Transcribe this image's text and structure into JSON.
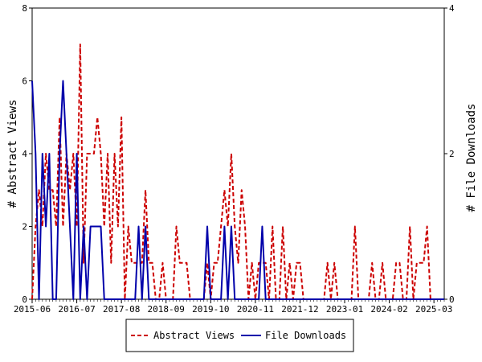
{
  "chart_data": {
    "type": "line",
    "title": "",
    "xlabel": "",
    "ylabel_left": "# Abstract Views",
    "ylabel_right": "# File Downloads",
    "ylim_left": [
      0,
      8
    ],
    "ylim_right": [
      0,
      4
    ],
    "yticks_left": [
      "0",
      "2",
      "4",
      "6",
      "8"
    ],
    "yticks_right": [
      "0",
      "2",
      "4"
    ],
    "x_tick_labels": [
      "2015-06",
      "2016-07",
      "2017-08",
      "2018-09",
      "2019-10",
      "2020-11",
      "2021-12",
      "2023-01",
      "2024-02",
      "2025-03"
    ],
    "x_start": "2015-06",
    "x_end": "2025-06",
    "legend_position": "bottom",
    "grid": false,
    "series": [
      {
        "name": "Abstract Views",
        "axis": "left",
        "color": "#cc0000",
        "style": "dashed",
        "points": [
          [
            "2015-06",
            0
          ],
          [
            "2015-07",
            2
          ],
          [
            "2015-08",
            3
          ],
          [
            "2015-09",
            2
          ],
          [
            "2015-10",
            4
          ],
          [
            "2015-11",
            3
          ],
          [
            "2015-12",
            3
          ],
          [
            "2016-01",
            2
          ],
          [
            "2016-02",
            5
          ],
          [
            "2016-03",
            2
          ],
          [
            "2016-04",
            4
          ],
          [
            "2016-05",
            3
          ],
          [
            "2016-06",
            4
          ],
          [
            "2016-07",
            2
          ],
          [
            "2016-08",
            7
          ],
          [
            "2016-09",
            1
          ],
          [
            "2016-10",
            4
          ],
          [
            "2016-11",
            4
          ],
          [
            "2016-12",
            4
          ],
          [
            "2017-01",
            5
          ],
          [
            "2017-02",
            4
          ],
          [
            "2017-03",
            2
          ],
          [
            "2017-04",
            4
          ],
          [
            "2017-05",
            1
          ],
          [
            "2017-06",
            4
          ],
          [
            "2017-07",
            2
          ],
          [
            "2017-08",
            5
          ],
          [
            "2017-09",
            0
          ],
          [
            "2017-10",
            2
          ],
          [
            "2017-11",
            1
          ],
          [
            "2017-12",
            1
          ],
          [
            "2018-01",
            1
          ],
          [
            "2018-02",
            1
          ],
          [
            "2018-03",
            3
          ],
          [
            "2018-04",
            1
          ],
          [
            "2018-05",
            1
          ],
          [
            "2018-06",
            0
          ],
          [
            "2018-07",
            0
          ],
          [
            "2018-08",
            1
          ],
          [
            "2018-09",
            0
          ],
          [
            "2018-10",
            0
          ],
          [
            "2018-11",
            0
          ],
          [
            "2018-12",
            2
          ],
          [
            "2019-01",
            1
          ],
          [
            "2019-02",
            1
          ],
          [
            "2019-03",
            1
          ],
          [
            "2019-04",
            0
          ],
          [
            "2019-05",
            0
          ],
          [
            "2019-06",
            0
          ],
          [
            "2019-07",
            0
          ],
          [
            "2019-08",
            0
          ],
          [
            "2019-09",
            1
          ],
          [
            "2019-10",
            0
          ],
          [
            "2019-11",
            1
          ],
          [
            "2019-12",
            1
          ],
          [
            "2020-01",
            2
          ],
          [
            "2020-02",
            3
          ],
          [
            "2020-03",
            2
          ],
          [
            "2020-04",
            4
          ],
          [
            "2020-05",
            2
          ],
          [
            "2020-06",
            1
          ],
          [
            "2020-07",
            3
          ],
          [
            "2020-08",
            2
          ],
          [
            "2020-09",
            0
          ],
          [
            "2020-10",
            1
          ],
          [
            "2020-11",
            0
          ],
          [
            "2020-12",
            1
          ],
          [
            "2021-01",
            1
          ],
          [
            "2021-02",
            1
          ],
          [
            "2021-03",
            0
          ],
          [
            "2021-04",
            2
          ],
          [
            "2021-05",
            0
          ],
          [
            "2021-06",
            0
          ],
          [
            "2021-07",
            2
          ],
          [
            "2021-08",
            0
          ],
          [
            "2021-09",
            1
          ],
          [
            "2021-10",
            0
          ],
          [
            "2021-11",
            1
          ],
          [
            "2021-12",
            1
          ],
          [
            "2022-01",
            0
          ],
          [
            "2022-02",
            0
          ],
          [
            "2022-03",
            0
          ],
          [
            "2022-04",
            0
          ],
          [
            "2022-05",
            0
          ],
          [
            "2022-06",
            0
          ],
          [
            "2022-07",
            0
          ],
          [
            "2022-08",
            1
          ],
          [
            "2022-09",
            0
          ],
          [
            "2022-10",
            1
          ],
          [
            "2022-11",
            0
          ],
          [
            "2022-12",
            0
          ],
          [
            "2023-01",
            0
          ],
          [
            "2023-02",
            0
          ],
          [
            "2023-03",
            0
          ],
          [
            "2023-04",
            2
          ],
          [
            "2023-05",
            0
          ],
          [
            "2023-06",
            0
          ],
          [
            "2023-07",
            0
          ],
          [
            "2023-08",
            0
          ],
          [
            "2023-09",
            1
          ],
          [
            "2023-10",
            0
          ],
          [
            "2023-11",
            0
          ],
          [
            "2023-12",
            1
          ],
          [
            "2024-01",
            0
          ],
          [
            "2024-02",
            0
          ],
          [
            "2024-03",
            0
          ],
          [
            "2024-04",
            1
          ],
          [
            "2024-05",
            1
          ],
          [
            "2024-06",
            0
          ],
          [
            "2024-07",
            0
          ],
          [
            "2024-08",
            2
          ],
          [
            "2024-09",
            0
          ],
          [
            "2024-10",
            1
          ],
          [
            "2024-11",
            1
          ],
          [
            "2024-12",
            1
          ],
          [
            "2025-01",
            2
          ],
          [
            "2025-02",
            0
          ],
          [
            "2025-03",
            0
          ],
          [
            "2025-04",
            0
          ],
          [
            "2025-05",
            0
          ],
          [
            "2025-06",
            0
          ]
        ]
      },
      {
        "name": "File Downloads",
        "axis": "right",
        "color": "#0000aa",
        "style": "solid",
        "points": [
          [
            "2015-06",
            3
          ],
          [
            "2015-07",
            2
          ],
          [
            "2015-08",
            0
          ],
          [
            "2015-09",
            2
          ],
          [
            "2015-10",
            1
          ],
          [
            "2015-11",
            2
          ],
          [
            "2015-12",
            0
          ],
          [
            "2016-01",
            0
          ],
          [
            "2016-02",
            2
          ],
          [
            "2016-03",
            3
          ],
          [
            "2016-04",
            2
          ],
          [
            "2016-05",
            1
          ],
          [
            "2016-06",
            0
          ],
          [
            "2016-07",
            2
          ],
          [
            "2016-08",
            0
          ],
          [
            "2016-09",
            1
          ],
          [
            "2016-10",
            0
          ],
          [
            "2016-11",
            1
          ],
          [
            "2016-12",
            1
          ],
          [
            "2017-01",
            1
          ],
          [
            "2017-02",
            1
          ],
          [
            "2017-03",
            0
          ],
          [
            "2017-04",
            0
          ],
          [
            "2017-05",
            0
          ],
          [
            "2017-06",
            0
          ],
          [
            "2017-07",
            0
          ],
          [
            "2017-08",
            0
          ],
          [
            "2017-09",
            0
          ],
          [
            "2017-10",
            0
          ],
          [
            "2017-11",
            0
          ],
          [
            "2017-12",
            0
          ],
          [
            "2018-01",
            1
          ],
          [
            "2018-02",
            0
          ],
          [
            "2018-03",
            1
          ],
          [
            "2018-04",
            0
          ],
          [
            "2018-05",
            0
          ],
          [
            "2018-06",
            0
          ],
          [
            "2018-07",
            0
          ],
          [
            "2018-08",
            0
          ],
          [
            "2018-09",
            0
          ],
          [
            "2018-10",
            0
          ],
          [
            "2018-11",
            0
          ],
          [
            "2018-12",
            0
          ],
          [
            "2019-01",
            0
          ],
          [
            "2019-02",
            0
          ],
          [
            "2019-03",
            0
          ],
          [
            "2019-04",
            0
          ],
          [
            "2019-05",
            0
          ],
          [
            "2019-06",
            0
          ],
          [
            "2019-07",
            0
          ],
          [
            "2019-08",
            0
          ],
          [
            "2019-09",
            1
          ],
          [
            "2019-10",
            0
          ],
          [
            "2019-11",
            0
          ],
          [
            "2019-12",
            0
          ],
          [
            "2020-01",
            0
          ],
          [
            "2020-02",
            1
          ],
          [
            "2020-03",
            0
          ],
          [
            "2020-04",
            1
          ],
          [
            "2020-05",
            0
          ],
          [
            "2020-06",
            0
          ],
          [
            "2020-07",
            0
          ],
          [
            "2020-08",
            0
          ],
          [
            "2020-09",
            0
          ],
          [
            "2020-10",
            0
          ],
          [
            "2020-11",
            0
          ],
          [
            "2020-12",
            0
          ],
          [
            "2021-01",
            1
          ],
          [
            "2021-02",
            0
          ],
          [
            "2021-03",
            0
          ],
          [
            "2021-04",
            0
          ],
          [
            "2021-05",
            0
          ],
          [
            "2021-06",
            0
          ],
          [
            "2021-07",
            0
          ],
          [
            "2021-08",
            0
          ],
          [
            "2021-09",
            0
          ],
          [
            "2021-10",
            0
          ],
          [
            "2021-11",
            0
          ],
          [
            "2021-12",
            0
          ],
          [
            "2022-01",
            0
          ],
          [
            "2022-02",
            0
          ],
          [
            "2022-03",
            0
          ],
          [
            "2022-04",
            0
          ],
          [
            "2022-05",
            0
          ],
          [
            "2022-06",
            0
          ],
          [
            "2022-07",
            0
          ],
          [
            "2022-08",
            0
          ],
          [
            "2022-09",
            0
          ],
          [
            "2022-10",
            0
          ],
          [
            "2022-11",
            0
          ],
          [
            "2022-12",
            0
          ],
          [
            "2023-01",
            0
          ],
          [
            "2023-02",
            0
          ],
          [
            "2023-03",
            0
          ],
          [
            "2023-04",
            0
          ],
          [
            "2023-05",
            0
          ],
          [
            "2023-06",
            0
          ],
          [
            "2023-07",
            0
          ],
          [
            "2023-08",
            0
          ],
          [
            "2023-09",
            0
          ],
          [
            "2023-10",
            0
          ],
          [
            "2023-11",
            0
          ],
          [
            "2023-12",
            0
          ],
          [
            "2024-01",
            0
          ],
          [
            "2024-02",
            0
          ],
          [
            "2024-03",
            0
          ],
          [
            "2024-04",
            0
          ],
          [
            "2024-05",
            0
          ],
          [
            "2024-06",
            0
          ],
          [
            "2024-07",
            0
          ],
          [
            "2024-08",
            0
          ],
          [
            "2024-09",
            0
          ],
          [
            "2024-10",
            0
          ],
          [
            "2024-11",
            0
          ],
          [
            "2024-12",
            0
          ],
          [
            "2025-01",
            0
          ],
          [
            "2025-02",
            0
          ],
          [
            "2025-03",
            0
          ],
          [
            "2025-04",
            0
          ],
          [
            "2025-05",
            0
          ],
          [
            "2025-06",
            0
          ]
        ]
      }
    ]
  }
}
